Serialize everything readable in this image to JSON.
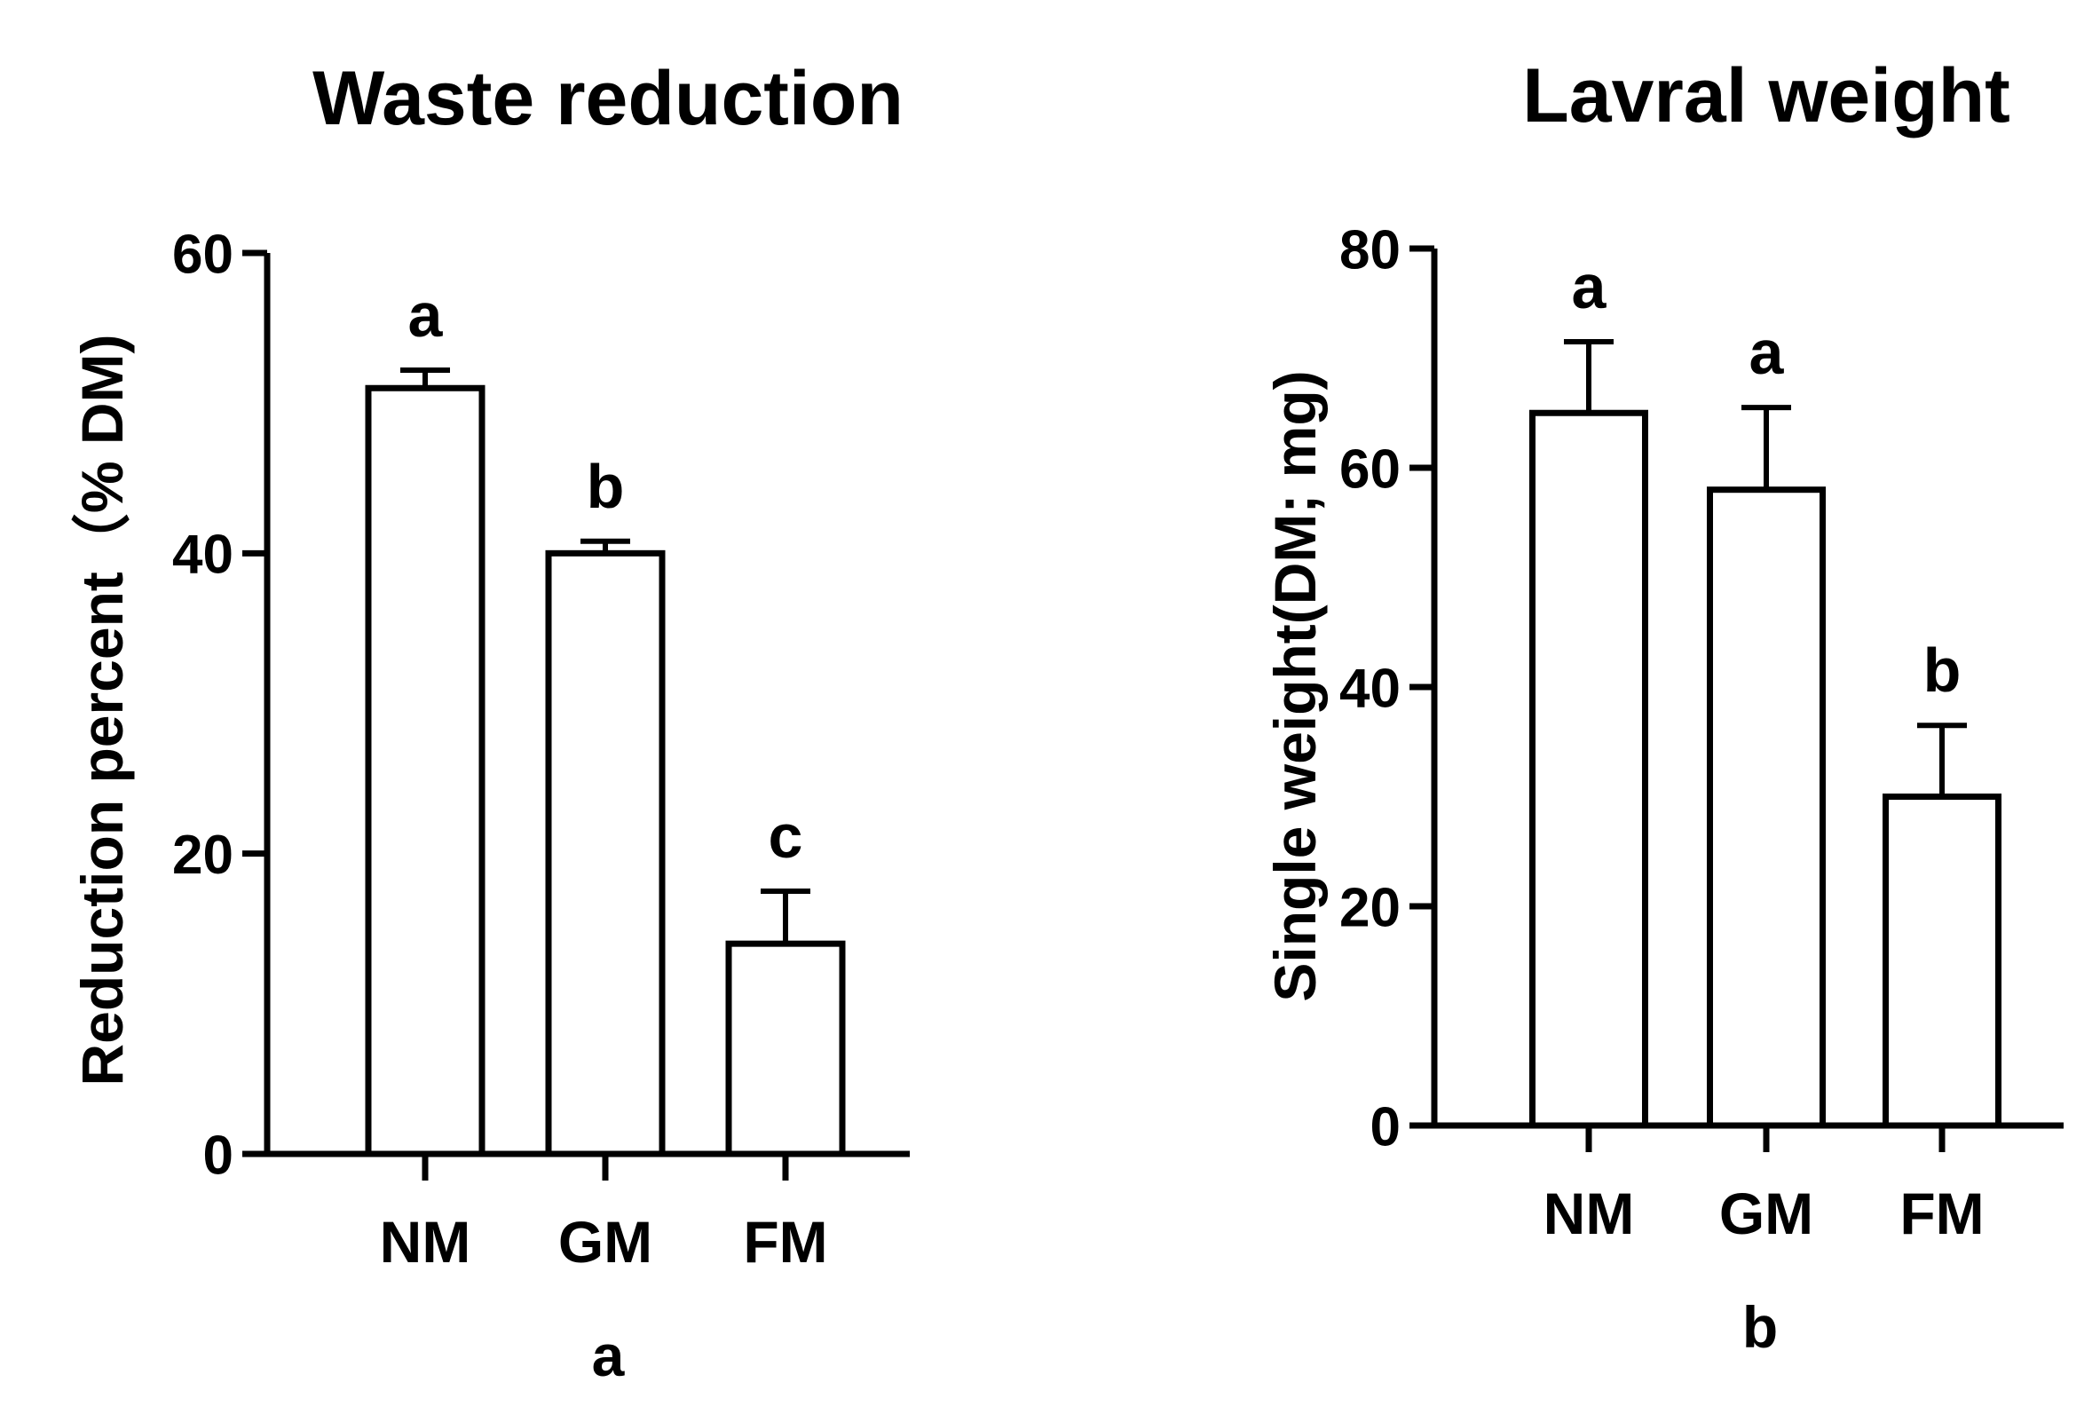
{
  "chart_data": [
    {
      "type": "bar",
      "title": "Waste reduction",
      "ylabel": "Reduction percent（% DM)",
      "xlabel": "",
      "panel_label": "a",
      "categories": [
        "NM",
        "GM",
        "FM"
      ],
      "values": [
        51,
        40,
        14
      ],
      "errors": [
        1.2,
        0.8,
        3.5
      ],
      "significance": [
        "a",
        "b",
        "c"
      ],
      "ylim": [
        0,
        60
      ],
      "yticks": [
        0,
        20,
        40,
        60
      ],
      "colors": {
        "bar_fill": "#ffffff",
        "stroke": "#000000"
      }
    },
    {
      "type": "bar",
      "title": "Lavral weight",
      "ylabel": "Single weight(DM; mg)",
      "xlabel": "",
      "panel_label": "b",
      "categories": [
        "NM",
        "GM",
        "FM"
      ],
      "values": [
        65,
        58,
        30
      ],
      "errors": [
        6.5,
        7.5,
        6.5
      ],
      "significance": [
        "a",
        "a",
        "b"
      ],
      "ylim": [
        0,
        80
      ],
      "yticks": [
        0,
        20,
        40,
        60,
        80
      ],
      "colors": {
        "bar_fill": "#ffffff",
        "stroke": "#000000"
      }
    }
  ]
}
